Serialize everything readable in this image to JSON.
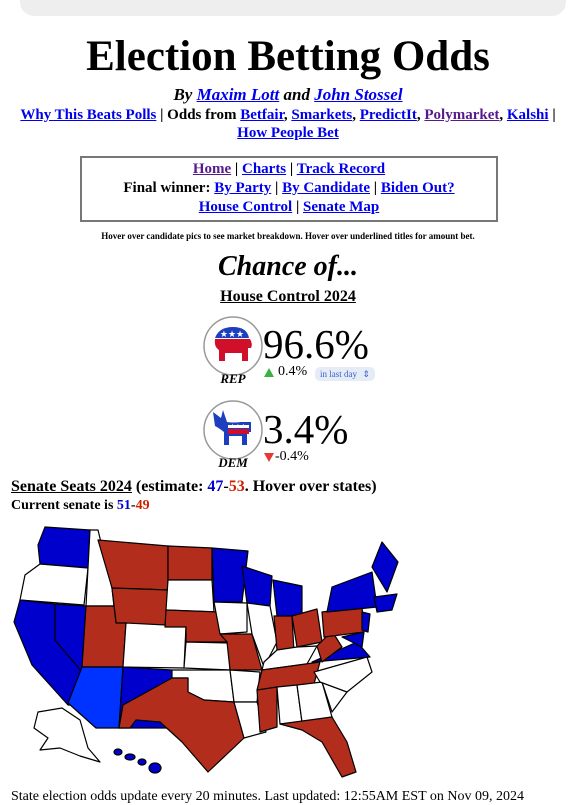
{
  "header": {
    "title": "Election Betting Odds",
    "byline": [
      "By ",
      "Maxim Lott",
      " and ",
      "John Stossel"
    ],
    "sources": [
      "Why This Beats Polls",
      " | Odds from ",
      "Betfair",
      ", ",
      "Smarkets",
      ", ",
      "PredictIt",
      ", ",
      "Polymarket",
      ", ",
      "Kalshi",
      " | ",
      "How People Bet"
    ]
  },
  "nav": {
    "line1": [
      "Home",
      " | ",
      "Charts",
      " | ",
      "Track Record"
    ],
    "line2": [
      "Final winner: ",
      "By Party",
      " | ",
      "By Candidate",
      " | ",
      "Biden Out?"
    ],
    "line3": [
      "House Control",
      " | ",
      "Senate Map"
    ]
  },
  "hint": "Hover over candidate pics to see market breakdown. Hover over underlined titles for amount bet.",
  "heading": "Chance of...",
  "market": {
    "title": "House Control 2024",
    "candidates": [
      {
        "party": "REP",
        "chance": "96.6%",
        "change": "0.4%",
        "period": "in last day"
      },
      {
        "party": "DEM",
        "chance": "3.4%",
        "change": "-0.4%"
      }
    ]
  },
  "senate": {
    "headline": [
      "Senate Seats 2024",
      " (estimate: ",
      "47",
      "-",
      "53",
      ". Hover over states)"
    ],
    "current": [
      "Current senate is ",
      "51",
      "-",
      "49"
    ]
  },
  "footer": "State election odds update every 20 minutes. Last updated: 12:55AM EST on Nov 09, 2024"
}
